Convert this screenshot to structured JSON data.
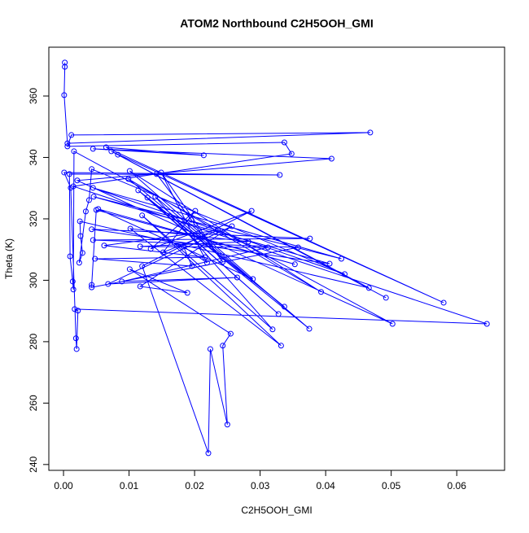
{
  "chart_data": {
    "type": "line",
    "title": "ATOM2 Northbound C2H5OOH_GMI",
    "x_label": "C2H5OOH_GMI",
    "y_label": "Theta (K)",
    "color": "#0000ff",
    "markers": true,
    "xlim": [
      -0.00224,
      0.0673
    ],
    "ylim": [
      238.1,
      375.9
    ],
    "xticks": [
      {
        "value": 0,
        "label": "0.00"
      },
      0.01,
      0.02,
      0.03,
      0.04,
      0.05,
      0.06
    ],
    "yticks": [
      240,
      260,
      280,
      300,
      320,
      340,
      360
    ],
    "x": [
      0.0002,
      0.0002,
      0.0001,
      0.0006,
      0.0468,
      0.0012,
      0.0006,
      0.0337,
      0.0348,
      0.0015,
      0.0646,
      0.0017,
      0.0022,
      0.002,
      0.0019,
      0.0011,
      0.0001,
      0.033,
      0.0009,
      0.001,
      0.0014,
      0.0015,
      0.0016,
      0.0502,
      0.0021,
      0.0409,
      0.0045,
      0.0214,
      0.0065,
      0.058,
      0.0073,
      0.0492,
      0.0083,
      0.0466,
      0.0025,
      0.0026,
      0.0029,
      0.0024,
      0.0034,
      0.0039,
      0.0043,
      0.0429,
      0.0045,
      0.0424,
      0.0046,
      0.0406,
      0.0043,
      0.0376,
      0.0045,
      0.0358,
      0.0043,
      0.0043,
      0.005,
      0.0353,
      0.0053,
      0.0289,
      0.0101,
      0.0393,
      0.0099,
      0.0337,
      0.0114,
      0.0328,
      0.0128,
      0.0375,
      0.014,
      0.0319,
      0.012,
      0.0332,
      0.0102,
      0.0282,
      0.0117,
      0.0312,
      0.0089,
      0.0265,
      0.0068,
      0.0257,
      0.0117,
      0.0189,
      0.0101,
      0.0255,
      0.0243,
      0.025,
      0.0224,
      0.0221,
      0.012,
      0.0287,
      0.0133,
      0.0201,
      0.0152,
      0.0236,
      0.0062,
      0.0216,
      0.0048,
      0.0196,
      0.0183,
      0.0219,
      0.0149,
      0.0243,
      0.0142,
      0.0195
    ],
    "values": [
      370.9,
      369.5,
      360.3,
      344.6,
      348.1,
      347.3,
      343.6,
      344.9,
      341.2,
      330.6,
      285.8,
      290.6,
      290.1,
      277.6,
      281.1,
      330.1,
      335.1,
      334.3,
      334.6,
      307.8,
      299.6,
      297.0,
      342.0,
      285.8,
      332.5,
      339.6,
      342.8,
      340.7,
      343.3,
      292.7,
      342.0,
      294.3,
      340.9,
      297.5,
      319.2,
      314.4,
      308.9,
      305.7,
      322.4,
      326.1,
      336.2,
      302.0,
      330.1,
      307.0,
      327.2,
      305.4,
      316.6,
      313.6,
      313.1,
      310.7,
      297.7,
      298.5,
      322.9,
      305.2,
      323.2,
      300.4,
      335.6,
      296.2,
      333.0,
      291.4,
      329.3,
      289.0,
      326.9,
      284.2,
      327.2,
      284.0,
      321.1,
      278.7,
      316.8,
      312.6,
      311.0,
      310.7,
      299.6,
      300.9,
      298.8,
      317.6,
      298.0,
      295.9,
      303.6,
      282.6,
      278.7,
      253.0,
      277.6,
      243.7,
      304.6,
      322.6,
      310.2,
      322.6,
      309.1,
      316.3,
      311.3,
      307.5,
      307.0,
      304.6,
      311.0,
      305.7,
      335.1,
      306.0,
      334.6,
      319.7
    ]
  }
}
